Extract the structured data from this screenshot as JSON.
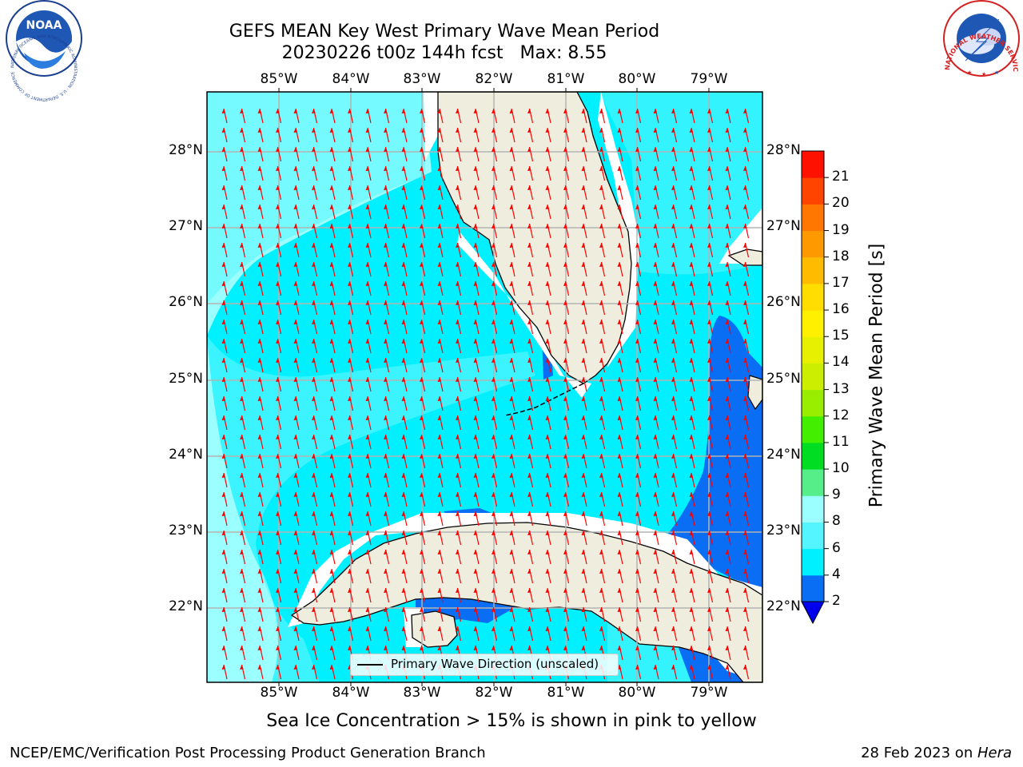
{
  "title_line1": "GEFS MEAN Key West Primary Wave Mean Period",
  "title_line2": "20230226 t00z 144h fcst   Max: 8.55",
  "map": {
    "lon_labels": [
      "85°W",
      "84°W",
      "83°W",
      "82°W",
      "81°W",
      "80°W",
      "79°W"
    ],
    "lat_labels": [
      "28°N",
      "27°N",
      "26°N",
      "25°N",
      "24°N",
      "23°N",
      "22°N"
    ],
    "lon_range": [
      -86,
      -78.25
    ],
    "lat_range": [
      21.05,
      28.75
    ],
    "grid": true,
    "land_color": "#eeedde",
    "coastline_color": "#000000",
    "vector_color": "#ff0000",
    "vector_direction": "north-northwest",
    "legend_label": "Primary Wave Direction (unscaled)"
  },
  "colorbar": {
    "label": "Primary Wave Mean Period [s]",
    "ticks": [
      "2",
      "4",
      "6",
      "8",
      "9",
      "10",
      "11",
      "12",
      "13",
      "14",
      "15",
      "16",
      "17",
      "18",
      "19",
      "20",
      "21"
    ],
    "colors": [
      "#0a6ef5",
      "#00f0ff",
      "#55f5ff",
      "#9cffff",
      "#55ee88",
      "#00dd22",
      "#44ee00",
      "#99ee00",
      "#ccee00",
      "#e6f000",
      "#fff000",
      "#ffdd00",
      "#ffbb00",
      "#ff9900",
      "#ff7700",
      "#ff4400",
      "#ff1100"
    ],
    "extend_color": "#0000ee"
  },
  "subtitle": "Sea Ice Concentration > 15% is shown in pink to yellow",
  "footer_left": "NCEP/EMC/Verification Post Processing Product Generation Branch",
  "footer_right_text": "28 Feb 2023 on ",
  "footer_right_host": "Hera",
  "logos": {
    "noaa_text": "NOAA",
    "noaa_ring_text": "NATIONAL OCEANIC AND ATMOSPHERIC ADMINISTRATION · U.S. DEPARTMENT OF COMMERCE",
    "nws_ring_text": "NATIONAL WEATHER SERVICE"
  }
}
